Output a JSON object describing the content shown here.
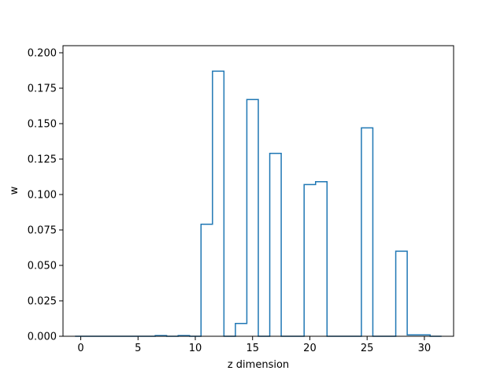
{
  "chart_data": {
    "type": "bar",
    "style": "step-histogram",
    "xlabel": "z dimension",
    "ylabel": "w",
    "xlim": [
      -1.55,
      32.55
    ],
    "ylim": [
      0.0,
      0.205
    ],
    "xticks": [
      0,
      5,
      10,
      15,
      20,
      25,
      30
    ],
    "xtick_labels": [
      "0",
      "5",
      "10",
      "15",
      "20",
      "25",
      "30"
    ],
    "yticks": [
      0.0,
      0.025,
      0.05,
      0.075,
      0.1,
      0.125,
      0.15,
      0.175,
      0.2
    ],
    "ytick_labels": [
      "0.000",
      "0.025",
      "0.050",
      "0.075",
      "0.100",
      "0.125",
      "0.150",
      "0.175",
      "0.200"
    ],
    "bin_edges": [
      -0.5,
      0.5,
      1.5,
      2.5,
      3.5,
      4.5,
      5.5,
      6.5,
      7.5,
      8.5,
      9.5,
      10.5,
      11.5,
      12.5,
      13.5,
      14.5,
      15.5,
      16.5,
      17.5,
      18.5,
      19.5,
      20.5,
      21.5,
      22.5,
      23.5,
      24.5,
      25.5,
      26.5,
      27.5,
      28.5,
      29.5,
      30.5,
      31.5
    ],
    "values": [
      0,
      0,
      0,
      0,
      0,
      0,
      0,
      0.0005,
      0,
      0.0005,
      0,
      0.079,
      0.187,
      0,
      0.009,
      0.167,
      0,
      0.129,
      0,
      0,
      0.107,
      0.109,
      0,
      0,
      0,
      0.147,
      0,
      0,
      0.06,
      0.001,
      0.001,
      0
    ],
    "color": "#1f77b4",
    "grid": false,
    "legend": "none"
  }
}
